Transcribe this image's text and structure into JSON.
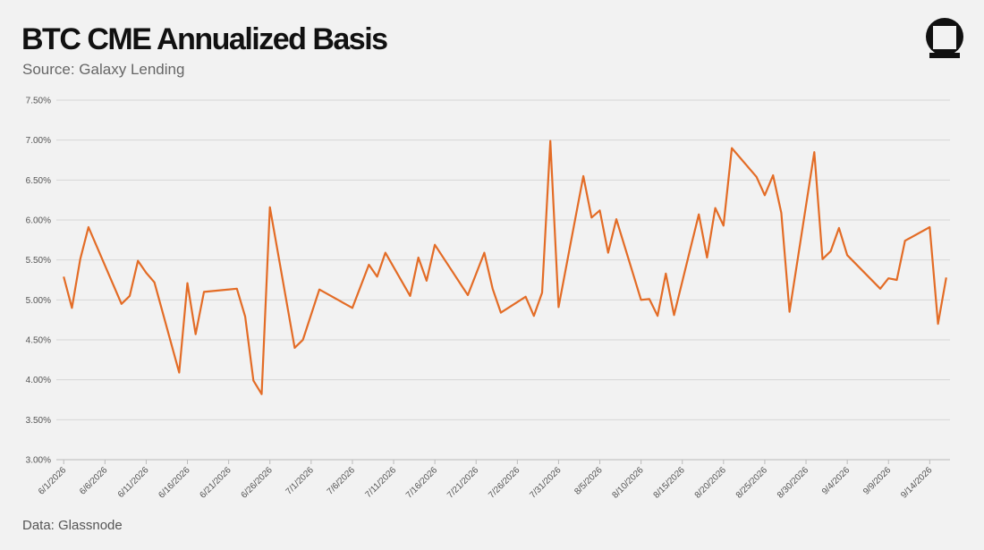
{
  "chart_data": {
    "type": "line",
    "title": "BTC CME Annualized Basis",
    "subtitle": "Source: Galaxy Lending",
    "footnote": "Data: Glassnode",
    "x": [
      "6/1/2026",
      "6/2/2026",
      "6/3/2026",
      "6/4/2026",
      "6/8/2026",
      "6/9/2026",
      "6/10/2026",
      "6/11/2026",
      "6/12/2026",
      "6/15/2026",
      "6/16/2026",
      "6/17/2026",
      "6/18/2026",
      "6/22/2026",
      "6/23/2026",
      "6/24/2026",
      "6/25/2026",
      "6/26/2026",
      "6/29/2026",
      "6/30/2026",
      "7/2/2026",
      "7/6/2026",
      "7/8/2026",
      "7/9/2026",
      "7/10/2026",
      "7/13/2026",
      "7/14/2026",
      "7/15/2026",
      "7/16/2026",
      "7/20/2026",
      "7/22/2026",
      "7/23/2026",
      "7/24/2026",
      "7/27/2026",
      "7/28/2026",
      "7/29/2026",
      "7/30/2026",
      "7/31/2026",
      "8/3/2026",
      "8/4/2026",
      "8/5/2026",
      "8/6/2026",
      "8/7/2026",
      "8/10/2026",
      "8/11/2026",
      "8/12/2026",
      "8/13/2026",
      "8/14/2026",
      "8/17/2026",
      "8/18/2026",
      "8/19/2026",
      "8/20/2026",
      "8/21/2026",
      "8/24/2026",
      "8/25/2026",
      "8/26/2026",
      "8/27/2026",
      "8/28/2026",
      "8/31/2026",
      "9/1/2026",
      "9/2/2026",
      "9/3/2026",
      "9/4/2026",
      "9/8/2026",
      "9/9/2026",
      "9/10/2026",
      "9/11/2026",
      "9/14/2026",
      "9/15/2026",
      "9/16/2026"
    ],
    "series": [
      {
        "name": "BTC CME Annualized Basis",
        "color": "#e36c26",
        "values": [
          5.29,
          4.9,
          5.51,
          5.91,
          4.95,
          5.05,
          5.49,
          5.34,
          5.22,
          4.09,
          5.21,
          4.57,
          5.1,
          5.14,
          4.79,
          3.99,
          3.82,
          6.16,
          4.4,
          4.5,
          5.13,
          4.9,
          5.44,
          5.29,
          5.59,
          5.05,
          5.53,
          5.24,
          5.69,
          5.06,
          5.59,
          5.14,
          4.84,
          5.04,
          4.8,
          5.09,
          6.99,
          4.91,
          6.55,
          6.03,
          6.12,
          5.59,
          6.01,
          5.0,
          5.01,
          4.8,
          5.33,
          4.81,
          6.07,
          5.53,
          6.15,
          5.93,
          6.9,
          6.54,
          6.31,
          6.56,
          6.09,
          4.85,
          6.85,
          5.51,
          5.61,
          5.9,
          5.56,
          5.14,
          5.27,
          5.25,
          5.74,
          5.91,
          4.7,
          5.28
        ]
      }
    ],
    "xlim": [
      "5/31/2026",
      "9/17/2026"
    ],
    "xticks": [
      "6/1/2026",
      "6/6/2026",
      "6/11/2026",
      "6/16/2026",
      "6/21/2026",
      "6/26/2026",
      "7/1/2026",
      "7/6/2026",
      "7/11/2026",
      "7/16/2026",
      "7/21/2026",
      "7/26/2026",
      "7/31/2026",
      "8/5/2026",
      "8/10/2026",
      "8/15/2026",
      "8/20/2026",
      "8/25/2026",
      "8/30/2026",
      "9/4/2026",
      "9/9/2026",
      "9/14/2026"
    ],
    "ylim": [
      3,
      7.5
    ],
    "yticks": [
      {
        "value": 3,
        "label": "3.00%"
      },
      {
        "value": 3.5,
        "label": "3.50%"
      },
      {
        "value": 4,
        "label": "4.00%"
      },
      {
        "value": 4.5,
        "label": "4.50%"
      },
      {
        "value": 5,
        "label": "5.00%"
      },
      {
        "value": 5.5,
        "label": "5.50%"
      },
      {
        "value": 6,
        "label": "6.00%"
      },
      {
        "value": 6.5,
        "label": "6.50%"
      },
      {
        "value": 7,
        "label": "7.00%"
      },
      {
        "value": 7.5,
        "label": "7.50%"
      }
    ],
    "grid": true
  }
}
